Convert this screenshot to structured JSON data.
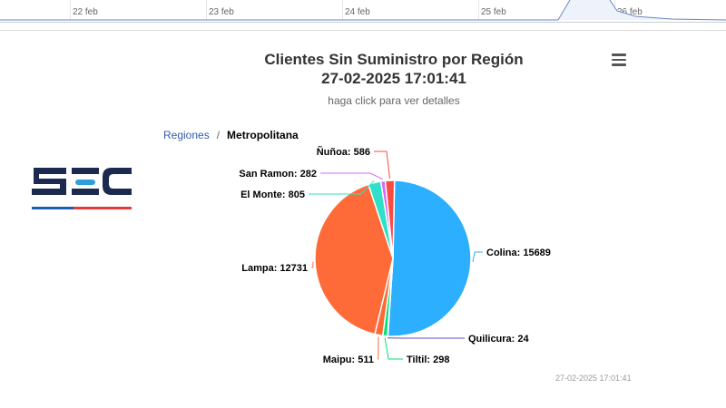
{
  "timeline": {
    "labels": [
      "22 feb",
      "23 feb",
      "24 feb",
      "25 feb",
      "26 feb"
    ]
  },
  "chart": {
    "title": "Clientes Sin Suministro por Región",
    "datetime": "27-02-2025 17:01:41",
    "subtitle": "haga click para ver detalles",
    "menu_icon": "hamburger-icon",
    "credit": "27-02-2025 17:01:41"
  },
  "breadcrumb": {
    "root": "Regiones",
    "separator": "/",
    "current": "Metropolitana"
  },
  "logo": {
    "text": "SEC"
  },
  "chart_data": {
    "type": "pie",
    "title": "Clientes Sin Suministro por Región",
    "subtitle": "haga click para ver detalles",
    "slices": [
      {
        "name": "Colina",
        "value": 15689,
        "color": "#2caffe",
        "label": "Colina: 15689"
      },
      {
        "name": "Quilicura",
        "value": 24,
        "color": "#544fc5",
        "label": "Quilicura: 24"
      },
      {
        "name": "Tiltil",
        "value": 298,
        "color": "#00e272",
        "label": "Tiltil: 298"
      },
      {
        "name": "Maipu",
        "value": 511,
        "color": "#fe6a35",
        "label": "Maipu: 511"
      },
      {
        "name": "Lampa",
        "value": 12731,
        "color": "#ff6b38",
        "label": "Lampa: 12731"
      },
      {
        "name": "El Monte",
        "value": 805,
        "color": "#2ee0ca",
        "label": "El Monte: 805"
      },
      {
        "name": "San Ramon",
        "value": 282,
        "color": "#d568fb",
        "label": "San Ramon: 282"
      },
      {
        "name": "Ñuñoa",
        "value": 586,
        "color": "#fa4b42",
        "label": "Ñuñoa: 586"
      }
    ]
  }
}
